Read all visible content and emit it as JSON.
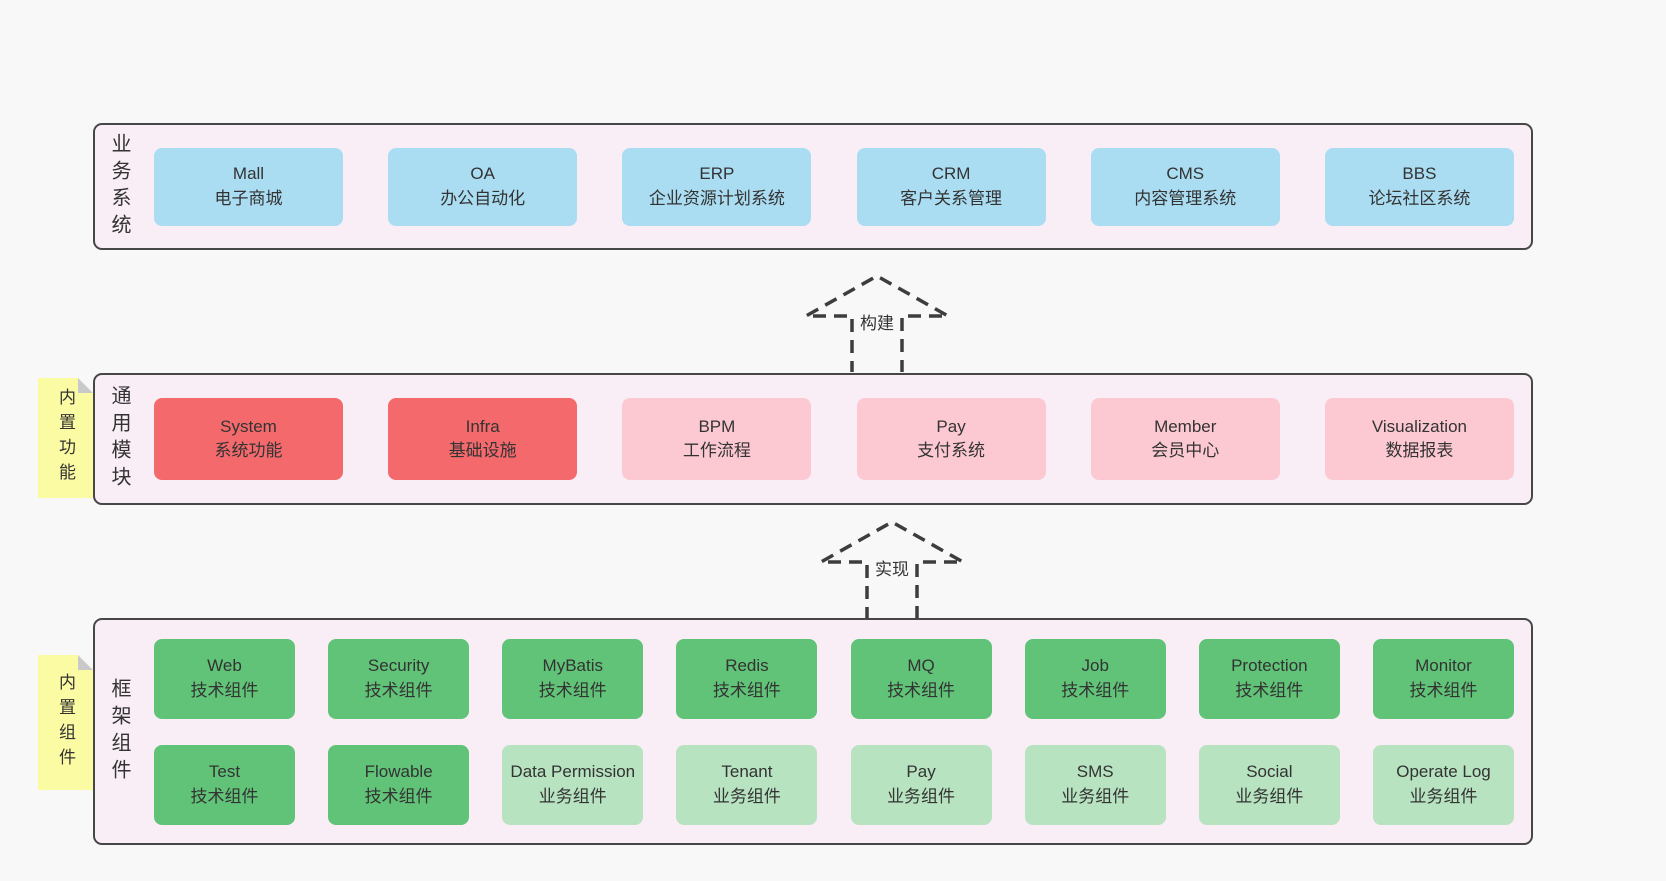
{
  "diagram": {
    "business_layer": {
      "label": "业务系统",
      "systems": [
        {
          "title": "Mall",
          "subtitle": "电子商城",
          "variant": "blue"
        },
        {
          "title": "OA",
          "subtitle": "办公自动化",
          "variant": "blue"
        },
        {
          "title": "ERP",
          "subtitle": "企业资源计划系统",
          "variant": "blue"
        },
        {
          "title": "CRM",
          "subtitle": "客户关系管理",
          "variant": "blue"
        },
        {
          "title": "CMS",
          "subtitle": "内容管理系统",
          "variant": "blue"
        },
        {
          "title": "BBS",
          "subtitle": "论坛社区系统",
          "variant": "blue"
        }
      ]
    },
    "build_arrow": {
      "label": "构建"
    },
    "module_layer": {
      "label": "通用模块",
      "sticky_note": "内置功能",
      "modules": [
        {
          "title": "System",
          "subtitle": "系统功能",
          "variant": "red"
        },
        {
          "title": "Infra",
          "subtitle": "基础设施",
          "variant": "red"
        },
        {
          "title": "BPM",
          "subtitle": "工作流程",
          "variant": "pink"
        },
        {
          "title": "Pay",
          "subtitle": "支付系统",
          "variant": "pink"
        },
        {
          "title": "Member",
          "subtitle": "会员中心",
          "variant": "pink"
        },
        {
          "title": "Visualization",
          "subtitle": "数据报表",
          "variant": "pink"
        }
      ]
    },
    "implement_arrow": {
      "label": "实现"
    },
    "component_layer": {
      "label": "框架组件",
      "sticky_note": "内置组件",
      "row1": [
        {
          "title": "Web",
          "subtitle": "技术组件",
          "variant": "green"
        },
        {
          "title": "Security",
          "subtitle": "技术组件",
          "variant": "green"
        },
        {
          "title": "MyBatis",
          "subtitle": "技术组件",
          "variant": "green"
        },
        {
          "title": "Redis",
          "subtitle": "技术组件",
          "variant": "green"
        },
        {
          "title": "MQ",
          "subtitle": "技术组件",
          "variant": "green"
        },
        {
          "title": "Job",
          "subtitle": "技术组件",
          "variant": "green"
        },
        {
          "title": "Protection",
          "subtitle": "技术组件",
          "variant": "green"
        },
        {
          "title": "Monitor",
          "subtitle": "技术组件",
          "variant": "green"
        }
      ],
      "row2": [
        {
          "title": "Test",
          "subtitle": "技术组件",
          "variant": "green"
        },
        {
          "title": "Flowable",
          "subtitle": "技术组件",
          "variant": "green"
        },
        {
          "title": "Data Permission",
          "subtitle": "业务组件",
          "variant": "lightgreen"
        },
        {
          "title": "Tenant",
          "subtitle": "业务组件",
          "variant": "lightgreen"
        },
        {
          "title": "Pay",
          "subtitle": "业务组件",
          "variant": "lightgreen"
        },
        {
          "title": "SMS",
          "subtitle": "业务组件",
          "variant": "lightgreen"
        },
        {
          "title": "Social",
          "subtitle": "业务组件",
          "variant": "lightgreen"
        },
        {
          "title": "Operate Log",
          "subtitle": "业务组件",
          "variant": "lightgreen"
        }
      ]
    },
    "colors": {
      "system_blue": "#aadcf2",
      "module_red": "#f4696b",
      "module_pink": "#fcc9d3",
      "tech_green": "#60c377",
      "biz_lightgreen": "#b7e3c0",
      "layer_bg": "#f9edf6",
      "note_yellow": "#fbfba3",
      "page_bg": "#f8f8f8",
      "border_dark": "#474747"
    }
  }
}
